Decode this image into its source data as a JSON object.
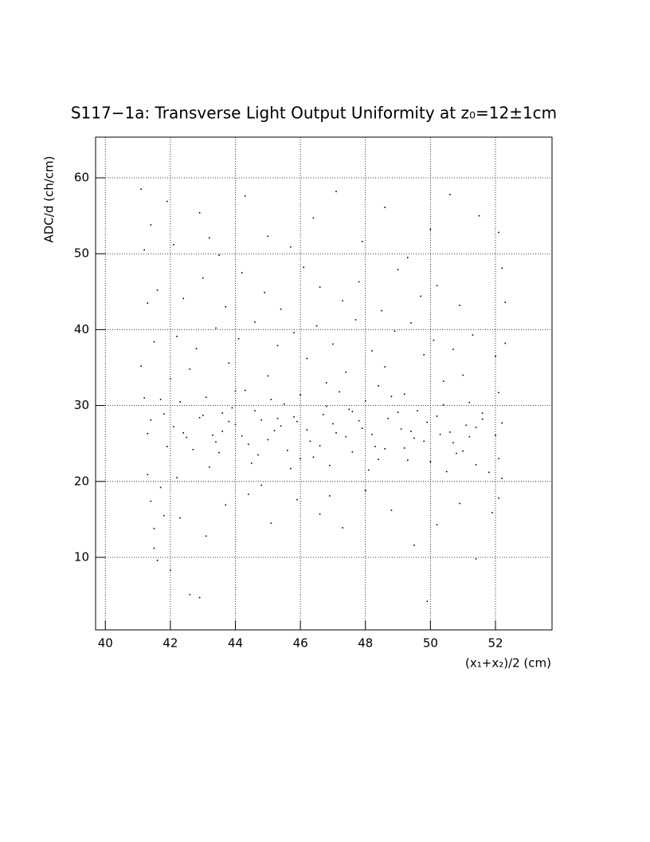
{
  "chart_data": {
    "type": "scatter",
    "title": "S117−1a: Transverse Light Output Uniformity at z₀=12±1cm",
    "x_label": "(x₁+x₂)/2 (cm)",
    "y_label": "ADC/d (ch/cm)",
    "color": "#000000",
    "grid": true,
    "xlim": [
      39.7,
      53.74
    ],
    "ylim": [
      0.44,
      65.36
    ],
    "xticks": [
      40,
      42,
      44,
      46,
      48,
      50,
      52
    ],
    "yticks": [
      10,
      20,
      30,
      40,
      50,
      60
    ],
    "x": [
      42.1,
      42.5,
      42.9,
      43.3,
      43.6,
      44.0,
      44.4,
      44.8,
      45.2,
      45.5,
      45.9,
      46.3,
      46.7,
      47.1,
      47.5,
      47.9,
      48.3,
      48.7,
      49.1,
      49.5,
      49.9,
      50.3,
      50.7,
      51.1,
      41.8,
      42.3,
      42.7,
      43.1,
      43.5,
      43.9,
      44.3,
      44.7,
      45.1,
      45.6,
      46.0,
      46.4,
      46.8,
      47.2,
      47.6,
      48.0,
      48.4,
      48.8,
      49.2,
      49.6,
      50.0,
      50.4,
      50.8,
      51.2,
      51.6,
      42.0,
      42.6,
      43.2,
      43.8,
      44.5,
      45.0,
      45.7,
      46.2,
      46.9,
      47.4,
      48.1,
      48.6,
      49.3,
      49.8,
      50.5,
      51.0,
      51.4,
      41.5,
      42.2,
      42.8,
      43.4,
      44.1,
      44.6,
      45.3,
      45.8,
      46.5,
      47.0,
      47.7,
      48.2,
      48.9,
      49.4,
      50.1,
      50.7,
      51.3,
      41.3,
      41.6,
      42.4,
      43.0,
      43.7,
      44.2,
      44.9,
      45.4,
      46.1,
      46.6,
      47.3,
      47.8,
      48.5,
      49.0,
      49.7,
      50.2,
      50.9,
      41.2,
      41.4,
      42.1,
      42.9,
      43.5,
      44.3,
      45.0,
      45.7,
      46.4,
      47.1,
      47.9,
      48.6,
      49.3,
      50.0,
      50.6,
      51.5,
      52.1,
      41.1,
      41.9,
      43.2,
      41.1,
      41.2,
      41.3,
      41.4,
      41.5,
      41.6,
      41.7,
      41.3,
      41.5,
      41.8,
      52.0,
      52.1,
      52.2,
      52.1,
      52.3,
      52.0,
      52.2,
      51.9,
      52.1,
      52.3,
      42.3,
      42.6,
      43.1,
      43.7,
      44.4,
      45.1,
      45.9,
      46.6,
      47.3,
      48.0,
      48.8,
      49.5,
      50.2,
      50.9,
      51.4,
      42.0,
      42.9,
      44.8,
      46.9,
      49.9,
      42.4,
      43.0,
      43.4,
      43.8,
      44.2,
      44.6,
      45.0,
      45.4,
      45.8,
      46.2,
      46.6,
      47.0,
      47.4,
      47.8,
      48.2,
      48.6,
      49.0,
      49.4,
      49.8,
      50.2,
      50.6,
      51.0,
      51.4,
      41.7,
      41.9,
      42.2,
      43.6,
      44.0,
      45.3,
      46.0,
      46.8,
      47.6,
      48.4,
      49.2,
      50.4,
      51.2,
      51.8,
      51.6,
      52.2,
      41.4
    ],
    "values": [
      27.2,
      25.8,
      28.4,
      26.1,
      29.0,
      27.5,
      24.9,
      28.1,
      26.7,
      30.2,
      27.9,
      25.3,
      28.8,
      26.4,
      29.5,
      27.0,
      24.6,
      28.3,
      26.9,
      25.7,
      27.8,
      26.2,
      25.1,
      27.4,
      28.9,
      30.5,
      24.2,
      31.1,
      23.8,
      29.7,
      32.0,
      23.5,
      30.8,
      24.1,
      31.4,
      23.2,
      29.9,
      31.8,
      23.9,
      30.6,
      22.9,
      31.2,
      24.4,
      29.3,
      22.6,
      30.1,
      23.7,
      25.9,
      28.2,
      33.5,
      34.8,
      21.9,
      35.6,
      22.4,
      33.9,
      21.7,
      36.2,
      22.1,
      34.4,
      21.5,
      35.1,
      22.8,
      36.7,
      21.3,
      34.0,
      22.2,
      38.4,
      39.1,
      37.5,
      40.2,
      38.8,
      41.0,
      37.9,
      39.6,
      40.5,
      38.1,
      41.3,
      37.2,
      39.8,
      40.9,
      38.6,
      37.4,
      39.3,
      43.5,
      45.2,
      44.1,
      46.8,
      43.0,
      47.5,
      44.9,
      42.7,
      48.2,
      45.6,
      43.8,
      46.3,
      42.5,
      47.9,
      44.4,
      45.8,
      43.2,
      50.5,
      53.8,
      51.2,
      55.4,
      49.8,
      57.6,
      52.3,
      50.9,
      54.7,
      58.2,
      51.6,
      56.1,
      49.5,
      53.2,
      57.8,
      55.0,
      52.8,
      58.5,
      56.9,
      52.1,
      35.2,
      31.0,
      20.9,
      17.4,
      13.8,
      9.6,
      19.2,
      26.3,
      11.2,
      15.5,
      36.5,
      31.7,
      20.4,
      17.8,
      43.6,
      26.1,
      48.1,
      15.9,
      23.0,
      38.2,
      15.2,
      5.1,
      12.8,
      16.9,
      18.3,
      14.5,
      17.6,
      15.7,
      13.9,
      18.8,
      16.2,
      11.6,
      14.3,
      17.1,
      9.8,
      8.3,
      4.7,
      19.5,
      18.1,
      4.2,
      26.4,
      28.7,
      25.2,
      27.9,
      26.0,
      29.3,
      25.5,
      27.3,
      28.5,
      26.8,
      24.7,
      27.6,
      25.9,
      28.0,
      26.2,
      24.3,
      29.1,
      26.6,
      25.3,
      28.6,
      26.5,
      24.0,
      27.1,
      30.8,
      24.6,
      20.5,
      26.6,
      31.9,
      28.3,
      23.0,
      33.0,
      29.2,
      32.6,
      31.5,
      33.2,
      30.4,
      21.2,
      29.0,
      27.7,
      28.1
    ]
  }
}
